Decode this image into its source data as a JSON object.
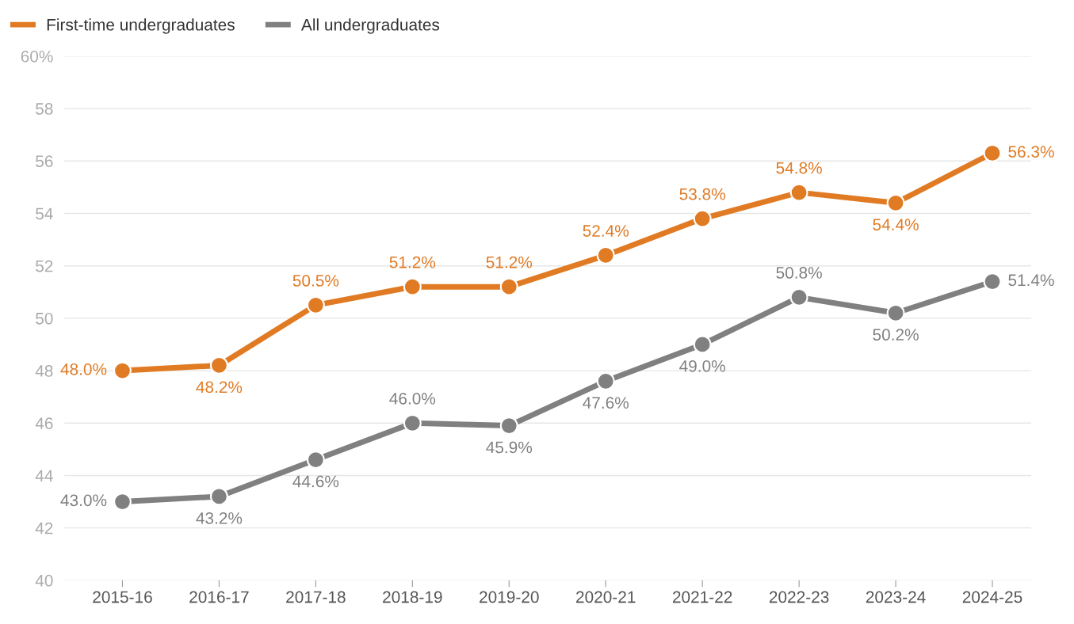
{
  "chart_data": {
    "type": "line",
    "categories": [
      "2015-16",
      "2016-17",
      "2017-18",
      "2018-19",
      "2019-20",
      "2020-21",
      "2021-22",
      "2022-23",
      "2023-24",
      "2024-25"
    ],
    "series": [
      {
        "name": "First-time undergraduates",
        "color": "#e07b24",
        "values": [
          48.0,
          48.2,
          50.5,
          51.2,
          51.2,
          52.4,
          53.8,
          54.8,
          54.4,
          56.3
        ],
        "value_labels": [
          "48.0%",
          "48.2%",
          "50.5%",
          "51.2%",
          "51.2%",
          "52.4%",
          "53.8%",
          "54.8%",
          "54.4%",
          "56.3%"
        ]
      },
      {
        "name": "All undergraduates",
        "color": "#808080",
        "values": [
          43.0,
          43.2,
          44.6,
          46.0,
          45.9,
          47.6,
          49.0,
          50.8,
          50.2,
          51.4
        ],
        "value_labels": [
          "43.0%",
          "43.2%",
          "44.6%",
          "46.0%",
          "45.9%",
          "47.6%",
          "49.0%",
          "50.8%",
          "50.2%",
          "51.4%"
        ]
      }
    ],
    "ylim": [
      40,
      60
    ],
    "yticks": [
      40,
      42,
      44,
      46,
      48,
      50,
      52,
      54,
      56,
      58,
      {
        "value": 60,
        "label": "60%"
      }
    ],
    "grid": "y",
    "legend": "top left",
    "marker": "circle",
    "line_style": "solid"
  }
}
